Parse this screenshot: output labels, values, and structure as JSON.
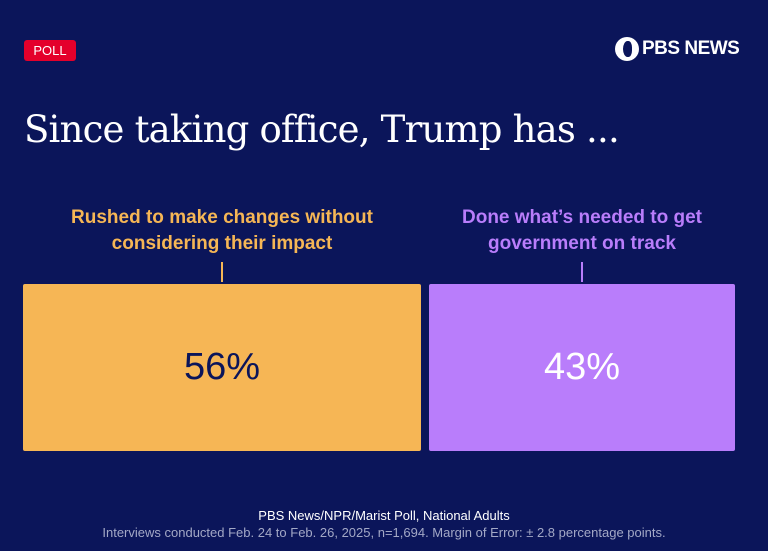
{
  "badge": "POLL",
  "logo": "PBS NEWS",
  "chart_data": {
    "type": "bar",
    "title": "Since taking office, Trump has ...",
    "categories": [
      "Rushed to make changes without considering their impact",
      "Done what’s needed to get government on track"
    ],
    "values": [
      56,
      43
    ],
    "value_labels": [
      "56%",
      "43%"
    ],
    "colors": [
      "#f6b655",
      "#b97dfb"
    ],
    "label_colors": [
      "#f6b655",
      "#b97dfb"
    ],
    "value_text_colors": [
      "#0b155a",
      "#ffffff"
    ]
  },
  "source": "PBS News/NPR/Marist Poll, National Adults",
  "note": "Interviews conducted Feb. 24 to Feb. 26, 2025, n=1,694. Margin of Error: ± 2.8 percentage points.",
  "background": "#0b155a"
}
